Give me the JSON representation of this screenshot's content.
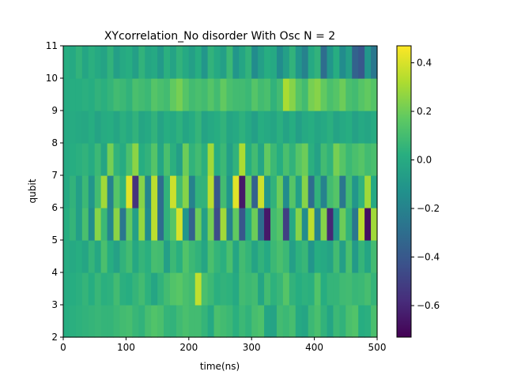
{
  "chart_data": {
    "type": "heatmap",
    "title": "XYcorrelation_No disorder With Osc N = 2",
    "xlabel": "time(ns)",
    "ylabel": "qubit",
    "xlim": [
      0,
      500
    ],
    "ylim": [
      2,
      11
    ],
    "x_ticks": [
      "0",
      "100",
      "200",
      "300",
      "400",
      "500"
    ],
    "y_ticks": [
      "2",
      "3",
      "4",
      "5",
      "6",
      "7",
      "8",
      "9",
      "10",
      "11"
    ],
    "colormap": "viridis",
    "colorbar": {
      "vmin": -0.73,
      "vmax": 0.47,
      "ticks": [
        0.4,
        0.2,
        0.0,
        -0.2,
        -0.4,
        -0.6
      ],
      "tick_labels": [
        "0.4",
        "0.2",
        "0.0",
        "−0.2",
        "−0.4",
        "−0.6"
      ]
    },
    "time_step": 10,
    "qubit_rows": [
      2,
      3,
      4,
      5,
      6,
      7,
      8,
      9,
      10
    ],
    "values": [
      [
        0.02,
        0.03,
        0.04,
        0.05,
        0.06,
        0.07,
        0.06,
        0.06,
        0.08,
        0.1,
        0.11,
        0.07,
        0.05,
        0.11,
        0.14,
        0.12,
        0.06,
        0.05,
        0.09,
        0.12,
        0.1,
        0.1,
        0.06,
        0.0,
        0.12,
        0.1,
        0.08,
        0.03,
        0.08,
        0.05,
        0.11,
        0.13,
        -0.02,
        -0.03,
        0.1,
        0.08,
        0.11,
        0.0,
        -0.02,
        0.08,
        0.12,
        0.05,
        -0.02,
        0.08,
        0.05,
        0.12,
        0.14,
        0.02,
        0.03,
        0.12
      ],
      [
        0.01,
        0.02,
        0.03,
        0.06,
        0.02,
        0.07,
        0.03,
        0.04,
        0.1,
        0.03,
        0.02,
        0.06,
        0.1,
        0.04,
        -0.02,
        0.05,
        0.1,
        0.14,
        0.16,
        0.12,
        0.1,
        0.36,
        0.12,
        0.08,
        0.03,
        0.05,
        0.04,
        0.0,
        0.1,
        0.08,
        0.1,
        -0.02,
        0.1,
        0.04,
        0.07,
        0.15,
        0.05,
        0.02,
        0.04,
        0.03,
        0.14,
        0.02,
        0.06,
        0.06,
        0.09,
        0.1,
        0.07,
        0.08,
        0.11,
        0.06
      ],
      [
        0.01,
        0.0,
        0.02,
        -0.02,
        0.06,
        -0.01,
        0.12,
        0.02,
        -0.04,
        0.05,
        0.1,
        -0.01,
        0.06,
        0.03,
        0.11,
        0.1,
        -0.05,
        0.08,
        0.03,
        0.14,
        0.08,
        0.05,
        -0.02,
        0.12,
        0.06,
        0.03,
        0.12,
        -0.02,
        0.1,
        0.06,
        -0.03,
        0.05,
        0.0,
        0.08,
        0.12,
        0.08,
        -0.05,
        0.04,
        0.07,
        -0.1,
        0.02,
        0.0,
        -0.03,
        0.1,
        -0.05,
        0.12,
        -0.08,
        0.06,
        -0.02,
        0.1
      ],
      [
        0.02,
        0.06,
        -0.05,
        0.12,
        -0.15,
        0.25,
        0.08,
        -0.18,
        0.26,
        -0.25,
        0.18,
        -0.05,
        0.28,
        -0.15,
        0.35,
        -0.3,
        0.05,
        0.15,
        0.4,
        -0.1,
        -0.35,
        0.2,
        -0.05,
        0.22,
        -0.45,
        0.3,
        -0.2,
        0.18,
        -0.4,
        0.0,
        0.2,
        -0.3,
        -0.65,
        0.1,
        0.15,
        -0.5,
        0.0,
        0.25,
        -0.15,
        0.35,
        -0.2,
        0.25,
        -0.6,
        -0.1,
        0.2,
        0.05,
        -0.25,
        0.35,
        -0.68,
        0.3
      ],
      [
        0.0,
        0.05,
        -0.05,
        0.08,
        -0.1,
        0.1,
        0.3,
        -0.2,
        0.15,
        0.05,
        0.42,
        -0.55,
        0.25,
        -0.18,
        0.35,
        -0.3,
        0.05,
        0.38,
        0.1,
        0.25,
        -0.2,
        0.05,
        0.05,
        0.35,
        -0.4,
        0.1,
        -0.1,
        0.42,
        -0.65,
        0.2,
        -0.35,
        0.38,
        -0.1,
        0.05,
        0.2,
        -0.15,
        0.15,
        -0.05,
        0.25,
        -0.3,
        0.05,
        -0.2,
        0.1,
        0.15,
        -0.25,
        0.1,
        -0.1,
        0.05,
        0.3,
        0.0
      ],
      [
        0.0,
        0.02,
        0.03,
        0.05,
        0.01,
        0.08,
        -0.02,
        0.22,
        0.05,
        0.01,
        0.12,
        0.26,
        0.02,
        0.05,
        0.15,
        -0.02,
        0.12,
        0.03,
        -0.05,
        0.2,
        0.05,
        0.1,
        0.03,
        0.3,
        0.02,
        0.08,
        -0.05,
        0.05,
        0.32,
        0.02,
        0.1,
        -0.02,
        0.18,
        0.08,
        0.02,
        0.12,
        0.05,
        0.15,
        0.2,
        0.03,
        -0.04,
        0.1,
        0.05,
        0.22,
        0.15,
        0.08,
        0.12,
        0.15,
        0.1,
        0.12
      ],
      [
        0.0,
        0.01,
        0.0,
        -0.01,
        0.02,
        -0.03,
        0.01,
        0.02,
        -0.02,
        0.03,
        0.0,
        0.05,
        -0.02,
        0.0,
        0.05,
        -0.03,
        0.02,
        0.0,
        0.04,
        -0.02,
        0.01,
        0.06,
        -0.03,
        0.0,
        0.02,
        0.05,
        -0.02,
        0.0,
        0.04,
        0.0,
        -0.05,
        0.02,
        0.0,
        -0.02,
        0.03,
        -0.03,
        0.02,
        -0.05,
        0.0,
        0.02,
        -0.02,
        0.0,
        0.03,
        -0.03,
        0.0,
        0.02,
        -0.04,
        0.0,
        -0.02,
        0.01
      ],
      [
        0.01,
        0.02,
        0.02,
        0.03,
        0.02,
        0.05,
        0.03,
        0.06,
        0.1,
        0.08,
        0.05,
        0.12,
        0.1,
        0.08,
        0.15,
        0.12,
        0.1,
        0.18,
        0.22,
        0.15,
        0.1,
        0.12,
        0.1,
        0.15,
        0.1,
        0.18,
        0.12,
        0.1,
        0.1,
        0.08,
        0.15,
        0.1,
        0.12,
        0.05,
        0.1,
        0.32,
        0.25,
        0.15,
        0.1,
        0.22,
        0.25,
        0.18,
        0.12,
        0.15,
        0.2,
        0.12,
        0.1,
        0.15,
        0.18,
        0.15
      ],
      [
        0.02,
        0.0,
        0.05,
        -0.02,
        0.03,
        0.0,
        -0.03,
        0.05,
        -0.05,
        0.0,
        0.02,
        -0.05,
        0.05,
        -0.02,
        0.0,
        -0.08,
        0.03,
        -0.03,
        0.05,
        0.0,
        -0.05,
        0.02,
        -0.1,
        0.05,
        0.0,
        -0.05,
        0.08,
        -0.1,
        -0.02,
        0.05,
        -0.15,
        -0.05,
        0.02,
        0.0,
        -0.15,
        -0.05,
        0.05,
        -0.1,
        -0.2,
        0.0,
        0.05,
        -0.3,
        -0.1,
        0.02,
        -0.15,
        -0.05,
        -0.35,
        -0.4,
        -0.1,
        -0.25
      ]
    ]
  }
}
